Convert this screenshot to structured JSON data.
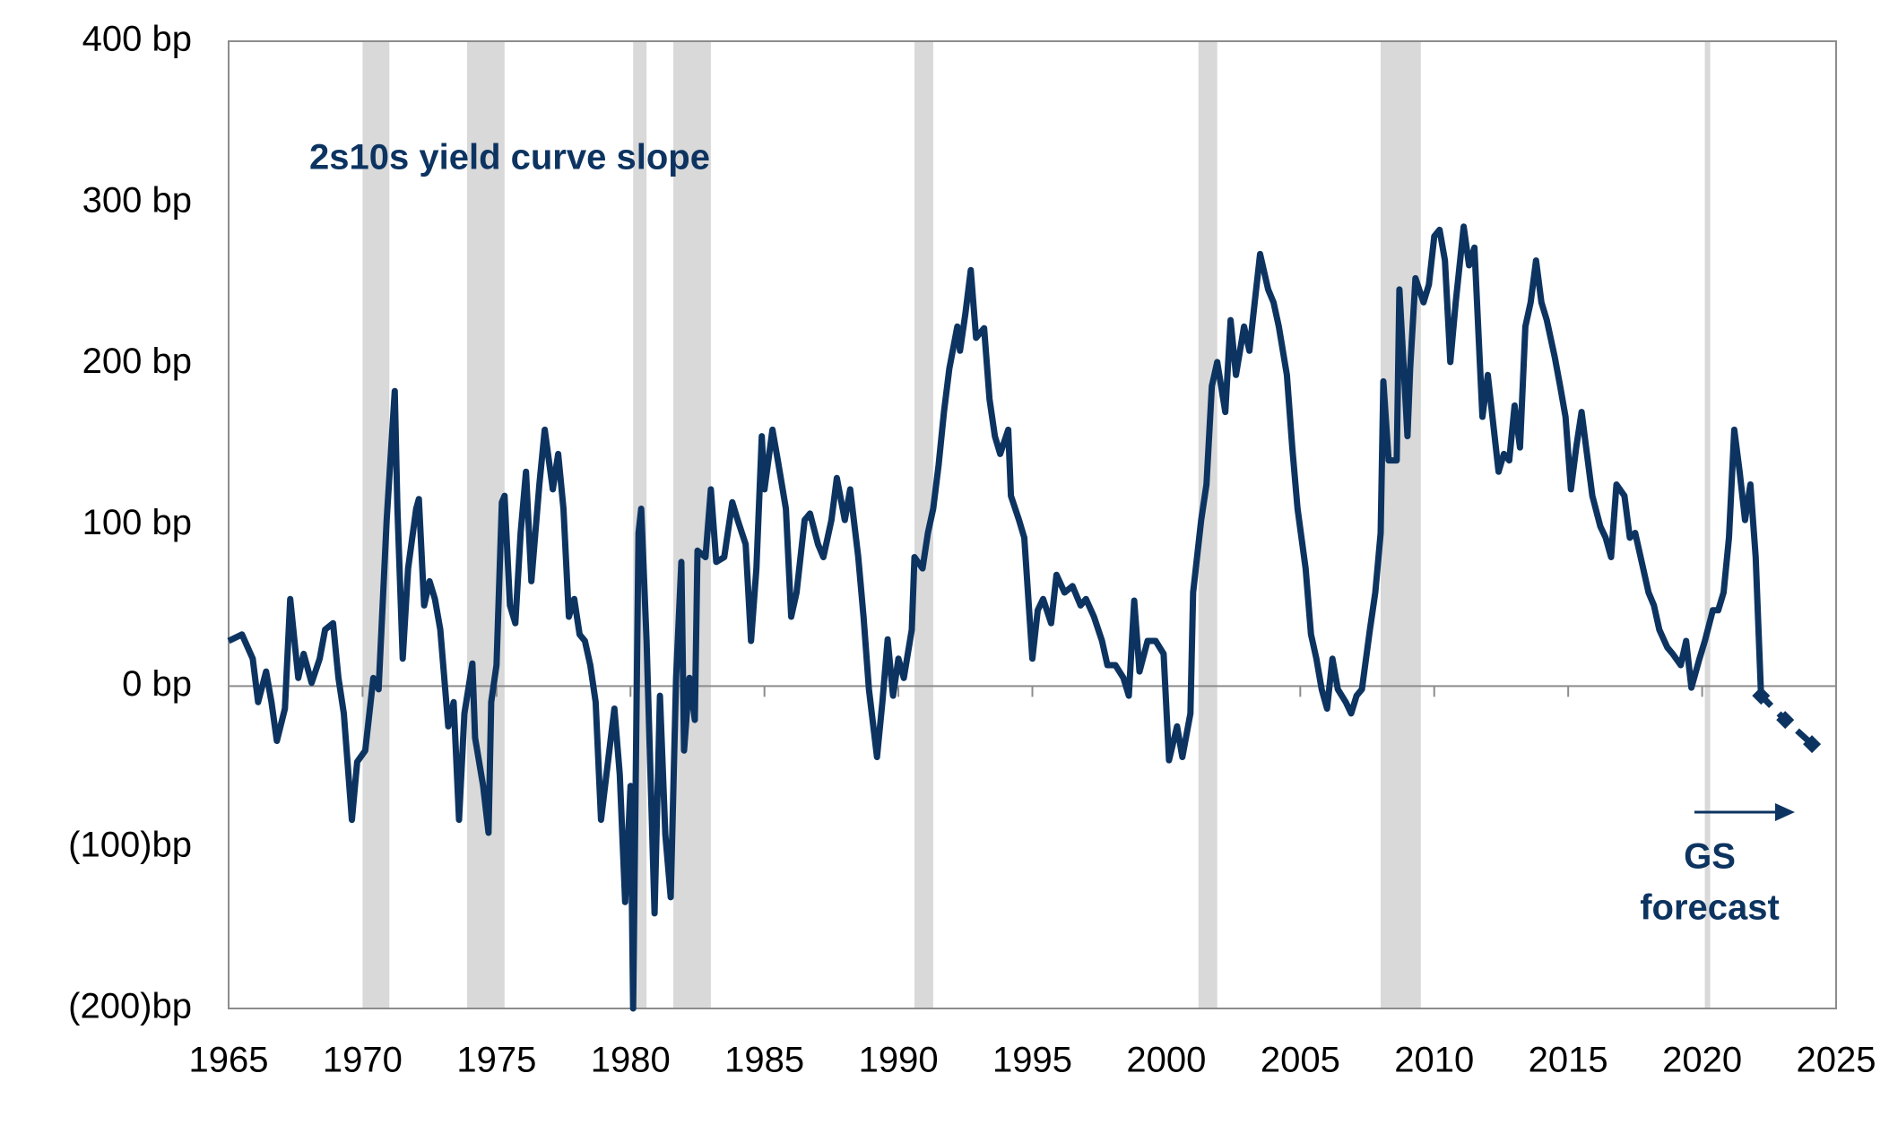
{
  "chart_data": {
    "type": "line",
    "title": "2s10s yield curve slope",
    "annotation": [
      "GS",
      "forecast"
    ],
    "xlim": [
      1965,
      2025
    ],
    "xticks": [
      1965,
      1970,
      1975,
      1980,
      1985,
      1990,
      1995,
      2000,
      2005,
      2010,
      2015,
      2020,
      2025
    ],
    "ylim": [
      -200,
      400
    ],
    "yticks": [
      {
        "value": 400,
        "label": "400 bp"
      },
      {
        "value": 300,
        "label": "300 bp"
      },
      {
        "value": 200,
        "label": "200 bp"
      },
      {
        "value": 100,
        "label": "100 bp"
      },
      {
        "value": 0,
        "label": "0 bp"
      },
      {
        "value": -100,
        "label": "(100)bp"
      },
      {
        "value": -200,
        "label": "(200)bp"
      }
    ],
    "grid": false,
    "shaded_periods": [
      [
        1970.0,
        1971.0
      ],
      [
        1973.9,
        1975.3
      ],
      [
        1980.1,
        1980.6
      ],
      [
        1981.6,
        1983.0
      ],
      [
        1990.6,
        1991.3
      ],
      [
        2001.2,
        2001.9
      ],
      [
        2008.0,
        2009.5
      ],
      [
        2020.1,
        2020.3
      ]
    ],
    "shade_color": "#d9d9d9",
    "series": [
      {
        "color": "#0d3461",
        "style": "solid",
        "x": [
          1965.0,
          1965.5,
          1965.9,
          1966.1,
          1966.4,
          1966.6,
          1966.8,
          1967.1,
          1967.3,
          1967.6,
          1967.8,
          1968.1,
          1968.4,
          1968.6,
          1968.9,
          1969.1,
          1969.3,
          1969.6,
          1969.8,
          1970.1,
          1970.4,
          1970.6,
          1970.9,
          1971.2,
          1971.3,
          1971.5,
          1971.7,
          1972.0,
          1972.1,
          1972.3,
          1972.5,
          1972.7,
          1972.9,
          1973.2,
          1973.4,
          1973.6,
          1973.8,
          1974.1,
          1974.2,
          1974.5,
          1974.7,
          1974.8,
          1975.0,
          1975.2,
          1975.3,
          1975.5,
          1975.7,
          1975.9,
          1976.1,
          1976.3,
          1976.6,
          1976.8,
          1977.1,
          1977.3,
          1977.5,
          1977.7,
          1977.9,
          1978.1,
          1978.3,
          1978.5,
          1978.7,
          1978.9,
          1979.1,
          1979.4,
          1979.6,
          1979.8,
          1980.0,
          1980.1,
          1980.3,
          1980.4,
          1980.6,
          1980.9,
          1981.1,
          1981.3,
          1981.5,
          1981.7,
          1981.9,
          1982.0,
          1982.2,
          1982.4,
          1982.5,
          1982.8,
          1983.0,
          1983.2,
          1983.5,
          1983.8,
          1984.0,
          1984.3,
          1984.5,
          1984.7,
          1984.9,
          1985.0,
          1985.3,
          1985.5,
          1985.8,
          1986.0,
          1986.2,
          1986.5,
          1986.7,
          1987.0,
          1987.2,
          1987.5,
          1987.7,
          1988.0,
          1988.2,
          1988.5,
          1988.7,
          1988.9,
          1989.2,
          1989.4,
          1989.6,
          1989.8,
          1990.0,
          1990.2,
          1990.5,
          1990.6,
          1990.9,
          1991.1,
          1991.3,
          1991.5,
          1991.7,
          1991.9,
          1992.2,
          1992.3,
          1992.5,
          1992.7,
          1992.9,
          1993.2,
          1993.4,
          1993.6,
          1993.8,
          1994.1,
          1994.2,
          1994.5,
          1994.7,
          1995.0,
          1995.2,
          1995.4,
          1995.7,
          1995.9,
          1996.2,
          1996.5,
          1996.8,
          1997.0,
          1997.3,
          1997.6,
          1997.8,
          1998.1,
          1998.4,
          1998.6,
          1998.8,
          1999.0,
          1999.3,
          1999.6,
          1999.9,
          2000.1,
          2000.4,
          2000.6,
          2000.9,
          2001.0,
          2001.3,
          2001.5,
          2001.7,
          2001.9,
          2002.2,
          2002.4,
          2002.6,
          2002.9,
          2003.1,
          2003.3,
          2003.5,
          2003.8,
          2004.0,
          2004.2,
          2004.5,
          2004.7,
          2004.9,
          2005.2,
          2005.4,
          2005.6,
          2005.8,
          2006.0,
          2006.2,
          2006.4,
          2006.7,
          2006.9,
          2007.1,
          2007.3,
          2007.6,
          2007.8,
          2008.0,
          2008.1,
          2008.3,
          2008.6,
          2008.7,
          2009.0,
          2009.1,
          2009.3,
          2009.6,
          2009.8,
          2010.0,
          2010.2,
          2010.4,
          2010.6,
          2010.8,
          2011.1,
          2011.3,
          2011.5,
          2011.7,
          2011.8,
          2012.0,
          2012.2,
          2012.4,
          2012.6,
          2012.8,
          2013.0,
          2013.2,
          2013.4,
          2013.6,
          2013.8,
          2014.0,
          2014.2,
          2014.5,
          2014.7,
          2014.9,
          2015.1,
          2015.3,
          2015.5,
          2015.7,
          2015.9,
          2016.2,
          2016.4,
          2016.6,
          2016.8,
          2017.1,
          2017.3,
          2017.5,
          2017.8,
          2018.0,
          2018.2,
          2018.4,
          2018.7,
          2018.9,
          2019.2,
          2019.4,
          2019.6,
          2019.9,
          2020.1,
          2020.4,
          2020.6,
          2020.8,
          2021.0,
          2021.2,
          2021.4,
          2021.6,
          2021.8,
          2022.0,
          2022.2
        ],
        "values": [
          28,
          32,
          17,
          -10,
          9,
          -10,
          -34,
          -14,
          54,
          5,
          20,
          2,
          17,
          35,
          39,
          5,
          -17,
          -83,
          -47,
          -40,
          5,
          -2,
          103,
          183,
          110,
          17,
          73,
          110,
          116,
          50,
          65,
          54,
          35,
          -25,
          -10,
          -83,
          -17,
          14,
          -32,
          -62,
          -91,
          -10,
          13,
          114,
          118,
          50,
          39,
          95,
          133,
          65,
          125,
          159,
          122,
          144,
          110,
          43,
          54,
          32,
          28,
          13,
          -10,
          -83,
          -55,
          -14,
          -55,
          -134,
          -62,
          -200,
          95,
          110,
          28,
          -141,
          -6,
          -92,
          -131,
          5,
          77,
          -40,
          5,
          -21,
          84,
          80,
          122,
          77,
          80,
          114,
          103,
          88,
          28,
          73,
          155,
          122,
          159,
          140,
          110,
          43,
          58,
          103,
          107,
          88,
          80,
          103,
          129,
          103,
          122,
          80,
          43,
          -2,
          -44,
          -10,
          29,
          -6,
          17,
          5,
          35,
          80,
          73,
          95,
          110,
          137,
          170,
          197,
          223,
          208,
          231,
          258,
          216,
          222,
          178,
          155,
          144,
          159,
          118,
          103,
          92,
          17,
          47,
          54,
          39,
          69,
          58,
          62,
          50,
          54,
          43,
          28,
          13,
          13,
          5,
          -6,
          53,
          9,
          28,
          28,
          20,
          -46,
          -25,
          -44,
          -17,
          58,
          103,
          125,
          186,
          201,
          170,
          227,
          193,
          223,
          208,
          238,
          268,
          246,
          238,
          223,
          193,
          148,
          110,
          73,
          32,
          17,
          -2,
          -14,
          17,
          -2,
          -10,
          -17,
          -6,
          -2,
          35,
          58,
          95,
          189,
          140,
          140,
          246,
          155,
          197,
          253,
          238,
          249,
          279,
          283,
          264,
          201,
          238,
          285,
          261,
          272,
          201,
          167,
          193,
          163,
          133,
          144,
          140,
          174,
          148,
          223,
          238,
          264,
          238,
          227,
          204,
          186,
          167,
          122,
          148,
          170,
          144,
          118,
          99,
          92,
          80,
          125,
          118,
          92,
          95,
          73,
          58,
          50,
          35,
          24,
          20,
          13,
          28,
          -1,
          17,
          28,
          47,
          47,
          58,
          92,
          159,
          133,
          103,
          125,
          80,
          -6
        ]
      },
      {
        "color": "#0d3461",
        "style": "dashed",
        "x": [
          2022.2,
          2023.1,
          2024.1
        ],
        "values": [
          -6,
          -21,
          -36
        ]
      }
    ]
  }
}
